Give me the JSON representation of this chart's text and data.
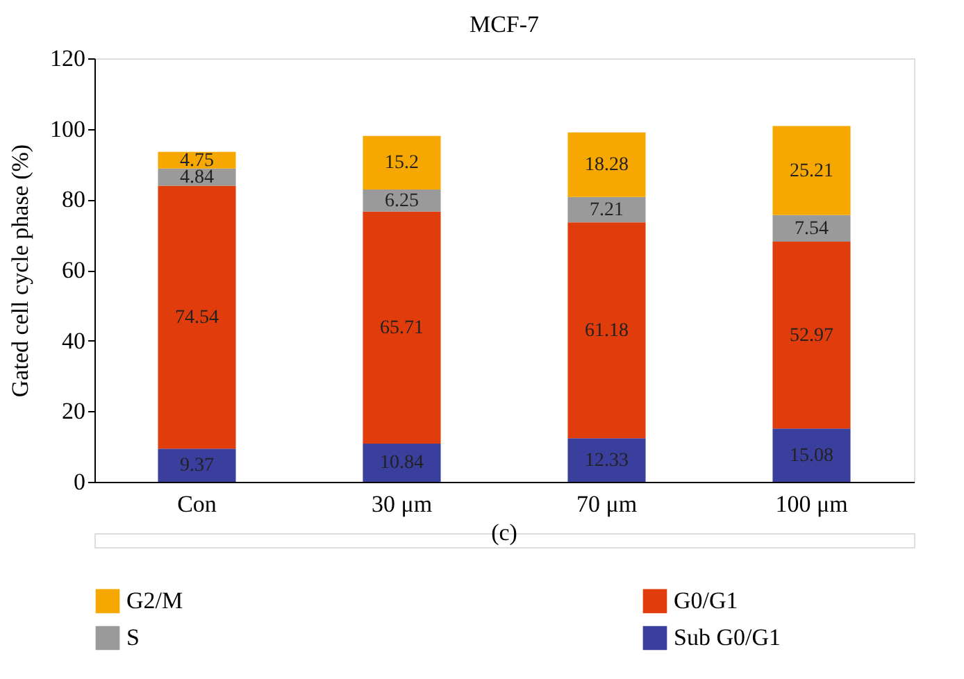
{
  "chart_data": {
    "type": "bar",
    "title": "MCF-7",
    "ylabel": "Gated cell cycle phase (%)",
    "categories": [
      "Con",
      "30 μm",
      "70 μm",
      "100 μm"
    ],
    "stacked": true,
    "data_labels": true,
    "legend": "bottom",
    "grid": false,
    "ylim": [
      0,
      120
    ],
    "yticks": [
      0,
      20,
      40,
      60,
      80,
      100,
      120
    ],
    "annotations": [
      "(c)"
    ],
    "series": [
      {
        "name": "Sub G0/G1",
        "color": "#3a3f9e",
        "values": [
          9.37,
          10.84,
          12.33,
          15.08
        ]
      },
      {
        "name": "G0/G1",
        "color": "#e03c0c",
        "values": [
          74.54,
          65.71,
          61.18,
          52.97
        ]
      },
      {
        "name": "S",
        "color": "#9a9a9a",
        "values": [
          4.84,
          6.25,
          7.21,
          7.54
        ]
      },
      {
        "name": "G2/M",
        "color": "#f7a800",
        "values": [
          4.75,
          15.2,
          18.28,
          25.21
        ]
      }
    ]
  }
}
